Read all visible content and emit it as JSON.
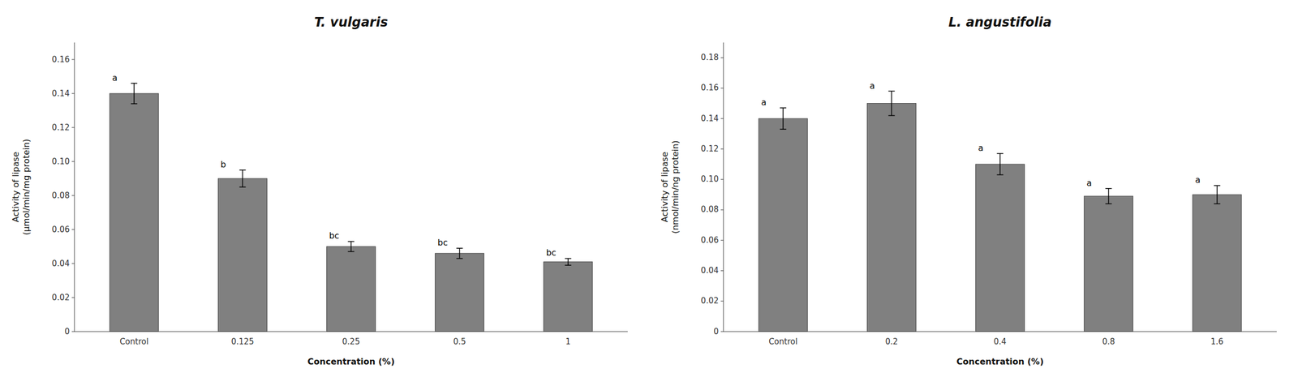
{
  "chart_data": [
    {
      "type": "bar",
      "title": "T. vulgaris",
      "categories": [
        "Control",
        "0.125",
        "0.25",
        "0.5",
        "1"
      ],
      "values": [
        0.14,
        0.09,
        0.05,
        0.046,
        0.041
      ],
      "errors": [
        0.006,
        0.005,
        0.003,
        0.003,
        0.002
      ],
      "annotations": [
        "a",
        "b",
        "bc",
        "bc",
        "bc"
      ],
      "ylabel": "Activity of lipase\n(μmol/min/mg protein)",
      "xlabel": "Concentration (%)",
      "color": "#808080",
      "ylim": [
        0,
        0.17
      ],
      "yticks": [
        0,
        0.02,
        0.04,
        0.06,
        0.08,
        {
          "value": 0.1,
          "label": "0.10"
        },
        0.12,
        0.14,
        0.16
      ],
      "grid": false
    },
    {
      "type": "bar",
      "title": "L. angustifolia",
      "categories": [
        "Control",
        "0.2",
        "0.4",
        "0.8",
        "1.6"
      ],
      "values": [
        0.14,
        0.15,
        0.11,
        0.089,
        0.09
      ],
      "errors": [
        0.007,
        0.008,
        0.007,
        0.005,
        0.006
      ],
      "annotations": [
        "a",
        "a",
        "a",
        "a",
        "a"
      ],
      "ylabel": "Activity of lipase\n(nmol/min/ng protein)",
      "xlabel": "Concentration (%)",
      "color": "#808080",
      "ylim": [
        0,
        0.19
      ],
      "yticks": [
        0,
        0.02,
        0.04,
        0.06,
        0.08,
        {
          "value": 0.1,
          "label": "0.10"
        },
        0.12,
        0.14,
        0.16,
        0.18
      ],
      "grid": false
    }
  ]
}
